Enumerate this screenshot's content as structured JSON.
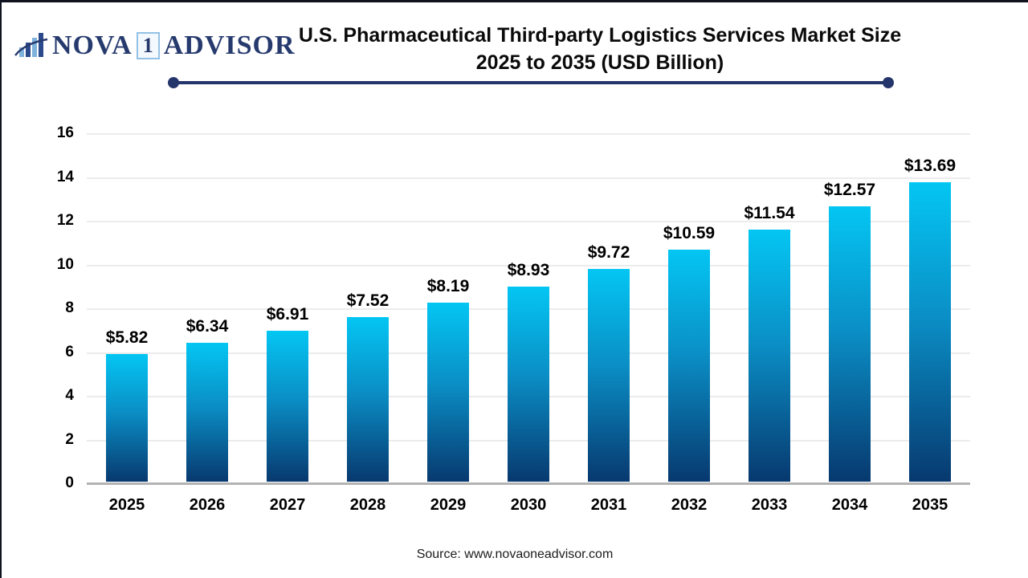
{
  "logo": {
    "icon": "bar-chart-swoosh-icon",
    "part1": "NOVA",
    "boxed_number": "1",
    "part2": "ADVISOR"
  },
  "title": {
    "line1": "U.S. Pharmaceutical Third-party Logistics Services Market Size",
    "line2": "2025 to 2035 (USD Billion)"
  },
  "chart_data": {
    "type": "bar",
    "title": "U.S. Pharmaceutical Third-party Logistics Services Market Size 2025 to 2035 (USD Billion)",
    "categories": [
      "2025",
      "2026",
      "2027",
      "2028",
      "2029",
      "2030",
      "2031",
      "2032",
      "2033",
      "2034",
      "2035"
    ],
    "values": [
      5.82,
      6.34,
      6.91,
      7.52,
      8.19,
      8.93,
      9.72,
      10.59,
      11.54,
      12.57,
      13.69
    ],
    "value_labels": [
      "$5.82",
      "$6.34",
      "$6.91",
      "$7.52",
      "$8.19",
      "$8.93",
      "$9.72",
      "$10.59",
      "$11.54",
      "$12.57",
      "$13.69"
    ],
    "unit": "USD Billion",
    "xlabel": "",
    "ylabel": "",
    "ylim": [
      0,
      16
    ],
    "yticks": [
      0,
      2,
      4,
      6,
      8,
      10,
      12,
      14,
      16
    ],
    "grid": true,
    "legend": false,
    "bar_color_top": "#04c6f3",
    "bar_color_mid": "#0a8fc6",
    "bar_color_bottom": "#07396f"
  },
  "footer": {
    "source": "Source: www.novaoneadvisor.com"
  },
  "colors": {
    "accent_navy": "#24356b",
    "logo_navy": "#263a6e",
    "logo_light_blue": "#7fb3dc",
    "gridline": "#ececec",
    "axis_line": "#b3b3b3",
    "label_text": "#000000"
  }
}
